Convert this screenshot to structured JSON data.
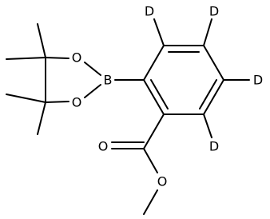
{
  "atoms": {
    "d1": "D",
    "d2": "D",
    "d3": "D",
    "d4": "D",
    "boron": "B",
    "o_ring_top": "O",
    "o_ring_bottom": "O",
    "o_carbonyl": "O",
    "o_ester": "O"
  }
}
